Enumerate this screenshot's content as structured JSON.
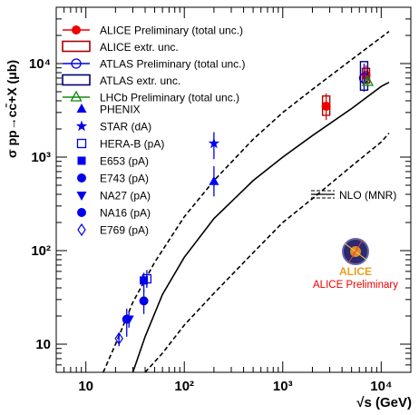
{
  "chart_data": {
    "type": "scatter",
    "x_scale": "log",
    "y_scale": "log",
    "xlim": [
      5,
      20000
    ],
    "ylim": [
      5,
      40000
    ],
    "xlabel": "√s (GeV)",
    "ylabel": "σ pp→cc̄+X (μb)",
    "x_ticks": [
      {
        "v": 10,
        "label": "10"
      },
      {
        "v": 100,
        "label": "10²"
      },
      {
        "v": 1000,
        "label": "10³"
      },
      {
        "v": 10000,
        "label": "10⁴"
      }
    ],
    "y_ticks": [
      {
        "v": 10,
        "label": "10"
      },
      {
        "v": 100,
        "label": "10²"
      },
      {
        "v": 1000,
        "label": "10³"
      },
      {
        "v": 10000,
        "label": "10⁴"
      }
    ],
    "legend": [
      {
        "key": "alice",
        "label": "ALICE Preliminary (total unc.)",
        "marker": "circle",
        "color": "#ee0000"
      },
      {
        "key": "alice_extr",
        "label": "ALICE extr. unc.",
        "marker": "box",
        "color": "#aa0000"
      },
      {
        "key": "atlas",
        "label": "ATLAS Preliminary (total unc.)",
        "marker": "circle-open",
        "color": "#0000dd"
      },
      {
        "key": "atlas_extr",
        "label": "ATLAS extr. unc.",
        "marker": "box",
        "color": "#00007a"
      },
      {
        "key": "lhcb",
        "label": "LHCb Preliminary (total unc.)",
        "marker": "triangle-open",
        "color": "#118811"
      },
      {
        "key": "phenix",
        "label": "PHENIX",
        "marker": "triangle",
        "color": "#0000ee"
      },
      {
        "key": "star",
        "label": "STAR (dA)",
        "marker": "star",
        "color": "#0000ee"
      },
      {
        "key": "herab",
        "label": "HERA-B (pA)",
        "marker": "square-open",
        "color": "#0000ee"
      },
      {
        "key": "e653",
        "label": "E653 (pA)",
        "marker": "square",
        "color": "#0000ee"
      },
      {
        "key": "e743",
        "label": "E743 (pA)",
        "marker": "circle",
        "color": "#0000ee"
      },
      {
        "key": "na27",
        "label": "NA27 (pA)",
        "marker": "triangle-down",
        "color": "#0000ee"
      },
      {
        "key": "na16",
        "label": "NA16 (pA)",
        "marker": "circle",
        "color": "#0000ee"
      },
      {
        "key": "e769",
        "label": "E769 (pA)",
        "marker": "diamond-open",
        "color": "#0000ee"
      }
    ],
    "points": [
      {
        "series": "alice",
        "x": 2760,
        "y": 3500,
        "lo": 2500,
        "hi": 4800,
        "box": [
          2800,
          4500
        ]
      },
      {
        "series": "alice",
        "x": 7000,
        "y": 7500,
        "lo": 6000,
        "hi": 9600,
        "box": [
          6200,
          8900
        ]
      },
      {
        "series": "atlas",
        "x": 6700,
        "y": 7000,
        "lo": 5000,
        "hi": 10000,
        "box": [
          5200,
          10500
        ]
      },
      {
        "series": "lhcb",
        "x": 7300,
        "y": 6400,
        "lo": 5900,
        "hi": 7000
      },
      {
        "series": "phenix",
        "x": 200,
        "y": 550,
        "lo": 380,
        "hi": 800
      },
      {
        "series": "star",
        "x": 200,
        "y": 1400,
        "lo": 950,
        "hi": 1850
      },
      {
        "series": "herab",
        "x": 41.6,
        "y": 50,
        "lo": 40,
        "hi": 62
      },
      {
        "series": "e653",
        "x": 38.8,
        "y": 48,
        "lo": 36,
        "hi": 58
      },
      {
        "series": "e743",
        "x": 38.8,
        "y": 29,
        "lo": 21,
        "hi": 38
      },
      {
        "series": "na27",
        "x": 27.4,
        "y": 18.5,
        "lo": 15,
        "hi": 22
      },
      {
        "series": "na16",
        "x": 26,
        "y": 18.5,
        "lo": 12,
        "hi": 24
      },
      {
        "series": "e769",
        "x": 21.7,
        "y": 11.5,
        "lo": 9.5,
        "hi": 13
      }
    ],
    "theory": {
      "label": "NLO (MNR)",
      "central": [
        [
          30,
          5
        ],
        [
          40,
          12
        ],
        [
          60,
          34
        ],
        [
          100,
          85
        ],
        [
          200,
          220
        ],
        [
          500,
          560
        ],
        [
          1000,
          1000
        ],
        [
          2000,
          1700
        ],
        [
          5000,
          3300
        ],
        [
          10000,
          5700
        ],
        [
          12000,
          6300
        ]
      ],
      "upper": [
        [
          15,
          5
        ],
        [
          20,
          10
        ],
        [
          30,
          28
        ],
        [
          50,
          75
        ],
        [
          100,
          230
        ],
        [
          200,
          560
        ],
        [
          500,
          1550
        ],
        [
          1000,
          3000
        ],
        [
          2000,
          5300
        ],
        [
          5000,
          11000
        ],
        [
          12000,
          22000
        ]
      ],
      "lower": [
        [
          40,
          5
        ],
        [
          60,
          8
        ],
        [
          100,
          16
        ],
        [
          200,
          35
        ],
        [
          500,
          95
        ],
        [
          1000,
          200
        ],
        [
          2000,
          360
        ],
        [
          5000,
          800
        ],
        [
          10000,
          1450
        ],
        [
          12000,
          1800
        ]
      ]
    },
    "logo_text": "ALICE",
    "logo_caption": "ALICE Preliminary"
  }
}
